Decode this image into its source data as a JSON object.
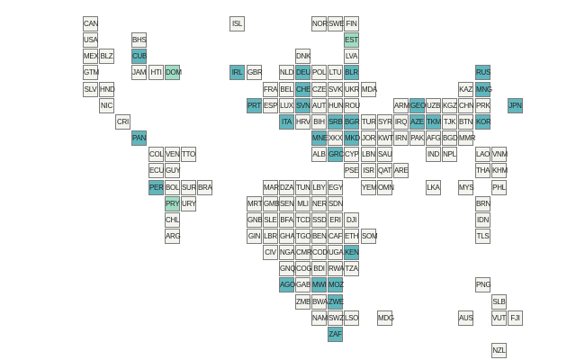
{
  "colors": {
    "empty": "#f3f4ee",
    "light": "#dbeedd",
    "medium": "#9fdcc4",
    "teal": "#5fb7bd",
    "border": "#7c7c7c"
  },
  "cells": [
    {
      "code": "CAN",
      "col": 0,
      "row": 0,
      "tone": "empty"
    },
    {
      "code": "ISL",
      "col": 9,
      "row": 0,
      "tone": "empty"
    },
    {
      "code": "NOR",
      "col": 14,
      "row": 0,
      "tone": "empty"
    },
    {
      "code": "SWE",
      "col": 15,
      "row": 0,
      "tone": "empty"
    },
    {
      "code": "FIN",
      "col": 16,
      "row": 0,
      "tone": "empty"
    },
    {
      "code": "USA",
      "col": 0,
      "row": 1,
      "tone": "empty"
    },
    {
      "code": "BHS",
      "col": 3,
      "row": 1,
      "tone": "empty"
    },
    {
      "code": "EST",
      "col": 16,
      "row": 1,
      "tone": "medium"
    },
    {
      "code": "MEX",
      "col": 0,
      "row": 2,
      "tone": "empty"
    },
    {
      "code": "BLZ",
      "col": 1,
      "row": 2,
      "tone": "empty"
    },
    {
      "code": "CUB",
      "col": 3,
      "row": 2,
      "tone": "teal"
    },
    {
      "code": "DNK",
      "col": 13,
      "row": 2,
      "tone": "empty"
    },
    {
      "code": "LVA",
      "col": 16,
      "row": 2,
      "tone": "empty"
    },
    {
      "code": "GTM",
      "col": 0,
      "row": 3,
      "tone": "empty"
    },
    {
      "code": "JAM",
      "col": 3,
      "row": 3,
      "tone": "empty"
    },
    {
      "code": "HTI",
      "col": 4,
      "row": 3,
      "tone": "empty"
    },
    {
      "code": "DOM",
      "col": 5,
      "row": 3,
      "tone": "medium"
    },
    {
      "code": "IRL",
      "col": 9,
      "row": 3,
      "tone": "teal"
    },
    {
      "code": "GBR",
      "col": 10,
      "row": 3,
      "tone": "empty"
    },
    {
      "code": "NLD",
      "col": 12,
      "row": 3,
      "tone": "empty"
    },
    {
      "code": "DEU",
      "col": 13,
      "row": 3,
      "tone": "teal"
    },
    {
      "code": "POL",
      "col": 14,
      "row": 3,
      "tone": "empty"
    },
    {
      "code": "LTU",
      "col": 15,
      "row": 3,
      "tone": "empty"
    },
    {
      "code": "BLR",
      "col": 16,
      "row": 3,
      "tone": "teal"
    },
    {
      "code": "RUS",
      "col": 24,
      "row": 3,
      "tone": "teal"
    },
    {
      "code": "SLV",
      "col": 0,
      "row": 4,
      "tone": "empty"
    },
    {
      "code": "HND",
      "col": 1,
      "row": 4,
      "tone": "empty"
    },
    {
      "code": "FRA",
      "col": 11,
      "row": 4,
      "tone": "empty"
    },
    {
      "code": "BEL",
      "col": 12,
      "row": 4,
      "tone": "empty"
    },
    {
      "code": "CHE",
      "col": 13,
      "row": 4,
      "tone": "teal"
    },
    {
      "code": "CZE",
      "col": 14,
      "row": 4,
      "tone": "empty"
    },
    {
      "code": "SVK",
      "col": 15,
      "row": 4,
      "tone": "empty"
    },
    {
      "code": "UKR",
      "col": 16,
      "row": 4,
      "tone": "empty"
    },
    {
      "code": "MDA",
      "col": 17,
      "row": 4,
      "tone": "empty"
    },
    {
      "code": "KAZ",
      "col": 23,
      "row": 4,
      "tone": "empty"
    },
    {
      "code": "MNG",
      "col": 24,
      "row": 4,
      "tone": "teal"
    },
    {
      "code": "NIC",
      "col": 1,
      "row": 5,
      "tone": "empty"
    },
    {
      "code": "PRT",
      "col": 10,
      "row": 5,
      "tone": "teal"
    },
    {
      "code": "ESP",
      "col": 11,
      "row": 5,
      "tone": "empty"
    },
    {
      "code": "LUX",
      "col": 12,
      "row": 5,
      "tone": "empty"
    },
    {
      "code": "SVN",
      "col": 13,
      "row": 5,
      "tone": "teal"
    },
    {
      "code": "AUT",
      "col": 14,
      "row": 5,
      "tone": "empty"
    },
    {
      "code": "HUN",
      "col": 15,
      "row": 5,
      "tone": "empty"
    },
    {
      "code": "ROU",
      "col": 16,
      "row": 5,
      "tone": "empty"
    },
    {
      "code": "ARM",
      "col": 19,
      "row": 5,
      "tone": "empty"
    },
    {
      "code": "GEO",
      "col": 20,
      "row": 5,
      "tone": "teal"
    },
    {
      "code": "UZB",
      "col": 21,
      "row": 5,
      "tone": "empty"
    },
    {
      "code": "KGZ",
      "col": 22,
      "row": 5,
      "tone": "empty"
    },
    {
      "code": "CHN",
      "col": 23,
      "row": 5,
      "tone": "empty"
    },
    {
      "code": "PRK",
      "col": 24,
      "row": 5,
      "tone": "empty"
    },
    {
      "code": "JPN",
      "col": 26,
      "row": 5,
      "tone": "teal"
    },
    {
      "code": "CRI",
      "col": 2,
      "row": 6,
      "tone": "empty"
    },
    {
      "code": "ITA",
      "col": 12,
      "row": 6,
      "tone": "teal"
    },
    {
      "code": "HRV",
      "col": 13,
      "row": 6,
      "tone": "empty"
    },
    {
      "code": "BIH",
      "col": 14,
      "row": 6,
      "tone": "empty"
    },
    {
      "code": "SRB",
      "col": 15,
      "row": 6,
      "tone": "teal"
    },
    {
      "code": "BGR",
      "col": 16,
      "row": 6,
      "tone": "teal"
    },
    {
      "code": "TUR",
      "col": 17,
      "row": 6,
      "tone": "empty"
    },
    {
      "code": "SYR",
      "col": 18,
      "row": 6,
      "tone": "empty"
    },
    {
      "code": "IRQ",
      "col": 19,
      "row": 6,
      "tone": "empty"
    },
    {
      "code": "AZE",
      "col": 20,
      "row": 6,
      "tone": "teal"
    },
    {
      "code": "TKM",
      "col": 21,
      "row": 6,
      "tone": "teal"
    },
    {
      "code": "TJK",
      "col": 22,
      "row": 6,
      "tone": "empty"
    },
    {
      "code": "BTN",
      "col": 23,
      "row": 6,
      "tone": "empty"
    },
    {
      "code": "KOR",
      "col": 24,
      "row": 6,
      "tone": "teal"
    },
    {
      "code": "PAN",
      "col": 3,
      "row": 7,
      "tone": "teal"
    },
    {
      "code": "MNE",
      "col": 14,
      "row": 7,
      "tone": "teal"
    },
    {
      "code": "XKX",
      "col": 15,
      "row": 7,
      "tone": "empty"
    },
    {
      "code": "MKD",
      "col": 16,
      "row": 7,
      "tone": "teal"
    },
    {
      "code": "JOR",
      "col": 17,
      "row": 7,
      "tone": "empty"
    },
    {
      "code": "KWT",
      "col": 18,
      "row": 7,
      "tone": "empty"
    },
    {
      "code": "IRN",
      "col": 19,
      "row": 7,
      "tone": "empty"
    },
    {
      "code": "PAK",
      "col": 20,
      "row": 7,
      "tone": "empty"
    },
    {
      "code": "AFG",
      "col": 21,
      "row": 7,
      "tone": "empty"
    },
    {
      "code": "BGD",
      "col": 22,
      "row": 7,
      "tone": "empty"
    },
    {
      "code": "MMR",
      "col": 23,
      "row": 7,
      "tone": "empty"
    },
    {
      "code": "COL",
      "col": 4,
      "row": 8,
      "tone": "empty"
    },
    {
      "code": "VEN",
      "col": 5,
      "row": 8,
      "tone": "empty"
    },
    {
      "code": "TTO",
      "col": 6,
      "row": 8,
      "tone": "empty"
    },
    {
      "code": "ALB",
      "col": 14,
      "row": 8,
      "tone": "empty"
    },
    {
      "code": "GRC",
      "col": 15,
      "row": 8,
      "tone": "teal"
    },
    {
      "code": "CYP",
      "col": 16,
      "row": 8,
      "tone": "empty"
    },
    {
      "code": "LBN",
      "col": 17,
      "row": 8,
      "tone": "empty"
    },
    {
      "code": "SAU",
      "col": 18,
      "row": 8,
      "tone": "empty"
    },
    {
      "code": "IND",
      "col": 21,
      "row": 8,
      "tone": "empty"
    },
    {
      "code": "NPL",
      "col": 22,
      "row": 8,
      "tone": "empty"
    },
    {
      "code": "LAO",
      "col": 24,
      "row": 8,
      "tone": "empty"
    },
    {
      "code": "VNM",
      "col": 25,
      "row": 8,
      "tone": "empty"
    },
    {
      "code": "ECU",
      "col": 4,
      "row": 9,
      "tone": "empty"
    },
    {
      "code": "GUY",
      "col": 5,
      "row": 9,
      "tone": "empty"
    },
    {
      "code": "PSE",
      "col": 16,
      "row": 9,
      "tone": "empty"
    },
    {
      "code": "ISR",
      "col": 17,
      "row": 9,
      "tone": "empty"
    },
    {
      "code": "QAT",
      "col": 18,
      "row": 9,
      "tone": "empty"
    },
    {
      "code": "ARE",
      "col": 19,
      "row": 9,
      "tone": "empty"
    },
    {
      "code": "THA",
      "col": 24,
      "row": 9,
      "tone": "empty"
    },
    {
      "code": "KHM",
      "col": 25,
      "row": 9,
      "tone": "empty"
    },
    {
      "code": "PER",
      "col": 4,
      "row": 10,
      "tone": "teal"
    },
    {
      "code": "BOL",
      "col": 5,
      "row": 10,
      "tone": "empty"
    },
    {
      "code": "SUR",
      "col": 6,
      "row": 10,
      "tone": "empty"
    },
    {
      "code": "BRA",
      "col": 7,
      "row": 10,
      "tone": "empty"
    },
    {
      "code": "MAR",
      "col": 11,
      "row": 10,
      "tone": "empty"
    },
    {
      "code": "DZA",
      "col": 12,
      "row": 10,
      "tone": "empty"
    },
    {
      "code": "TUN",
      "col": 13,
      "row": 10,
      "tone": "empty"
    },
    {
      "code": "LBY",
      "col": 14,
      "row": 10,
      "tone": "empty"
    },
    {
      "code": "EGY",
      "col": 15,
      "row": 10,
      "tone": "empty"
    },
    {
      "code": "YEM",
      "col": 17,
      "row": 10,
      "tone": "empty"
    },
    {
      "code": "OMN",
      "col": 18,
      "row": 10,
      "tone": "empty"
    },
    {
      "code": "LKA",
      "col": 21,
      "row": 10,
      "tone": "empty"
    },
    {
      "code": "MYS",
      "col": 23,
      "row": 10,
      "tone": "empty"
    },
    {
      "code": "PHL",
      "col": 25,
      "row": 10,
      "tone": "empty"
    },
    {
      "code": "PRY",
      "col": 5,
      "row": 11,
      "tone": "medium"
    },
    {
      "code": "URY",
      "col": 6,
      "row": 11,
      "tone": "empty"
    },
    {
      "code": "MRT",
      "col": 10,
      "row": 11,
      "tone": "empty"
    },
    {
      "code": "GMB",
      "col": 11,
      "row": 11,
      "tone": "empty"
    },
    {
      "code": "SEN",
      "col": 12,
      "row": 11,
      "tone": "empty"
    },
    {
      "code": "MLI",
      "col": 13,
      "row": 11,
      "tone": "empty"
    },
    {
      "code": "NER",
      "col": 14,
      "row": 11,
      "tone": "empty"
    },
    {
      "code": "SDN",
      "col": 15,
      "row": 11,
      "tone": "empty"
    },
    {
      "code": "BRN",
      "col": 24,
      "row": 11,
      "tone": "empty"
    },
    {
      "code": "CHL",
      "col": 5,
      "row": 12,
      "tone": "empty"
    },
    {
      "code": "GNB",
      "col": 10,
      "row": 12,
      "tone": "empty"
    },
    {
      "code": "SLE",
      "col": 11,
      "row": 12,
      "tone": "empty"
    },
    {
      "code": "BFA",
      "col": 12,
      "row": 12,
      "tone": "empty"
    },
    {
      "code": "TCD",
      "col": 13,
      "row": 12,
      "tone": "empty"
    },
    {
      "code": "SSD",
      "col": 14,
      "row": 12,
      "tone": "empty"
    },
    {
      "code": "ERI",
      "col": 15,
      "row": 12,
      "tone": "empty"
    },
    {
      "code": "DJI",
      "col": 16,
      "row": 12,
      "tone": "empty"
    },
    {
      "code": "IDN",
      "col": 24,
      "row": 12,
      "tone": "empty"
    },
    {
      "code": "ARG",
      "col": 5,
      "row": 13,
      "tone": "empty"
    },
    {
      "code": "GIN",
      "col": 10,
      "row": 13,
      "tone": "empty"
    },
    {
      "code": "LBR",
      "col": 11,
      "row": 13,
      "tone": "empty"
    },
    {
      "code": "GHA",
      "col": 12,
      "row": 13,
      "tone": "empty"
    },
    {
      "code": "TGO",
      "col": 13,
      "row": 13,
      "tone": "empty"
    },
    {
      "code": "BEN",
      "col": 14,
      "row": 13,
      "tone": "empty"
    },
    {
      "code": "CAF",
      "col": 15,
      "row": 13,
      "tone": "empty"
    },
    {
      "code": "ETH",
      "col": 16,
      "row": 13,
      "tone": "empty"
    },
    {
      "code": "SOM",
      "col": 17,
      "row": 13,
      "tone": "empty"
    },
    {
      "code": "TLS",
      "col": 24,
      "row": 13,
      "tone": "empty"
    },
    {
      "code": "CIV",
      "col": 11,
      "row": 14,
      "tone": "empty"
    },
    {
      "code": "NGA",
      "col": 12,
      "row": 14,
      "tone": "empty"
    },
    {
      "code": "CMR",
      "col": 13,
      "row": 14,
      "tone": "empty"
    },
    {
      "code": "COD",
      "col": 14,
      "row": 14,
      "tone": "empty"
    },
    {
      "code": "UGA",
      "col": 15,
      "row": 14,
      "tone": "empty"
    },
    {
      "code": "KEN",
      "col": 16,
      "row": 14,
      "tone": "teal"
    },
    {
      "code": "GNQ",
      "col": 12,
      "row": 15,
      "tone": "empty"
    },
    {
      "code": "COG",
      "col": 13,
      "row": 15,
      "tone": "empty"
    },
    {
      "code": "BDI",
      "col": 14,
      "row": 15,
      "tone": "empty"
    },
    {
      "code": "RWA",
      "col": 15,
      "row": 15,
      "tone": "empty"
    },
    {
      "code": "TZA",
      "col": 16,
      "row": 15,
      "tone": "empty"
    },
    {
      "code": "AGO",
      "col": 12,
      "row": 16,
      "tone": "teal"
    },
    {
      "code": "GAB",
      "col": 13,
      "row": 16,
      "tone": "empty"
    },
    {
      "code": "MWI",
      "col": 14,
      "row": 16,
      "tone": "teal"
    },
    {
      "code": "MOZ",
      "col": 15,
      "row": 16,
      "tone": "teal"
    },
    {
      "code": "PNG",
      "col": 24,
      "row": 16,
      "tone": "empty"
    },
    {
      "code": "ZMB",
      "col": 13,
      "row": 17,
      "tone": "empty"
    },
    {
      "code": "BWA",
      "col": 14,
      "row": 17,
      "tone": "empty"
    },
    {
      "code": "ZWE",
      "col": 15,
      "row": 17,
      "tone": "teal"
    },
    {
      "code": "SLB",
      "col": 25,
      "row": 17,
      "tone": "empty"
    },
    {
      "code": "NAM",
      "col": 14,
      "row": 18,
      "tone": "empty"
    },
    {
      "code": "SWZ",
      "col": 15,
      "row": 18,
      "tone": "empty"
    },
    {
      "code": "LSO",
      "col": 16,
      "row": 18,
      "tone": "empty"
    },
    {
      "code": "MDG",
      "col": 18,
      "row": 18,
      "tone": "empty"
    },
    {
      "code": "AUS",
      "col": 23,
      "row": 18,
      "tone": "empty"
    },
    {
      "code": "VUT",
      "col": 25,
      "row": 18,
      "tone": "empty"
    },
    {
      "code": "FJI",
      "col": 26,
      "row": 18,
      "tone": "empty"
    },
    {
      "code": "ZAF",
      "col": 15,
      "row": 19,
      "tone": "teal"
    },
    {
      "code": "NZL",
      "col": 25,
      "row": 20,
      "tone": "empty"
    }
  ]
}
